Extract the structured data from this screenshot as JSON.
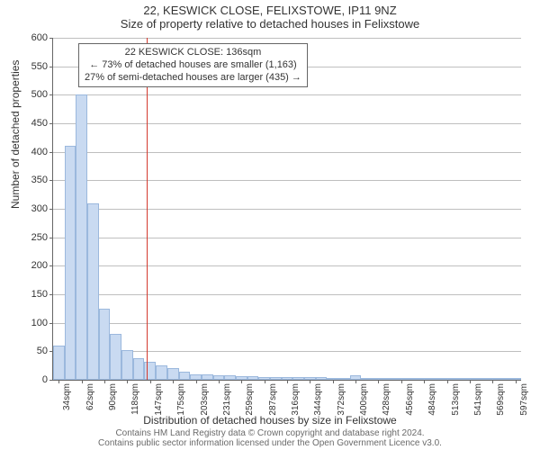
{
  "titles": {
    "line1": "22, KESWICK CLOSE, FELIXSTOWE, IP11 9NZ",
    "line2": "Size of property relative to detached houses in Felixstowe"
  },
  "ylabel": "Number of detached properties",
  "xlabel": "Distribution of detached houses by size in Felixstowe",
  "footer": {
    "line1": "Contains HM Land Registry data © Crown copyright and database right 2024.",
    "line2": "Contains public sector information licensed under the Open Government Licence v3.0."
  },
  "annotation": {
    "line1": "22 KESWICK CLOSE: 136sqm",
    "line2": "← 73% of detached houses are smaller (1,163)",
    "line3": "27% of semi-detached houses are larger (435) →"
  },
  "chart": {
    "type": "histogram",
    "ylim": [
      0,
      600
    ],
    "ytick_step": 50,
    "background_color": "#ffffff",
    "grid_color": "#bfbfbf",
    "bar_color": "#c9daf1",
    "bar_border_color": "#9bb8dd",
    "refline_x": 136,
    "refline_color": "#d43a2f",
    "n_bars": 41,
    "x_start": 20,
    "x_step_label": 14.1,
    "bars": [
      60,
      410,
      500,
      310,
      125,
      80,
      52,
      38,
      32,
      25,
      20,
      15,
      10,
      10,
      8,
      8,
      6,
      6,
      5,
      5,
      5,
      4,
      4,
      4,
      3,
      3,
      8,
      3,
      2,
      2,
      2,
      2,
      2,
      2,
      2,
      2,
      2,
      2,
      2,
      2,
      2
    ],
    "xtick_labels": [
      "34sqm",
      "62sqm",
      "90sqm",
      "118sqm",
      "147sqm",
      "175sqm",
      "203sqm",
      "231sqm",
      "259sqm",
      "287sqm",
      "316sqm",
      "344sqm",
      "372sqm",
      "400sqm",
      "428sqm",
      "456sqm",
      "484sqm",
      "513sqm",
      "541sqm",
      "569sqm",
      "597sqm"
    ],
    "title_fontsize": 13,
    "label_fontsize": 12,
    "tick_fontsize": 11
  }
}
